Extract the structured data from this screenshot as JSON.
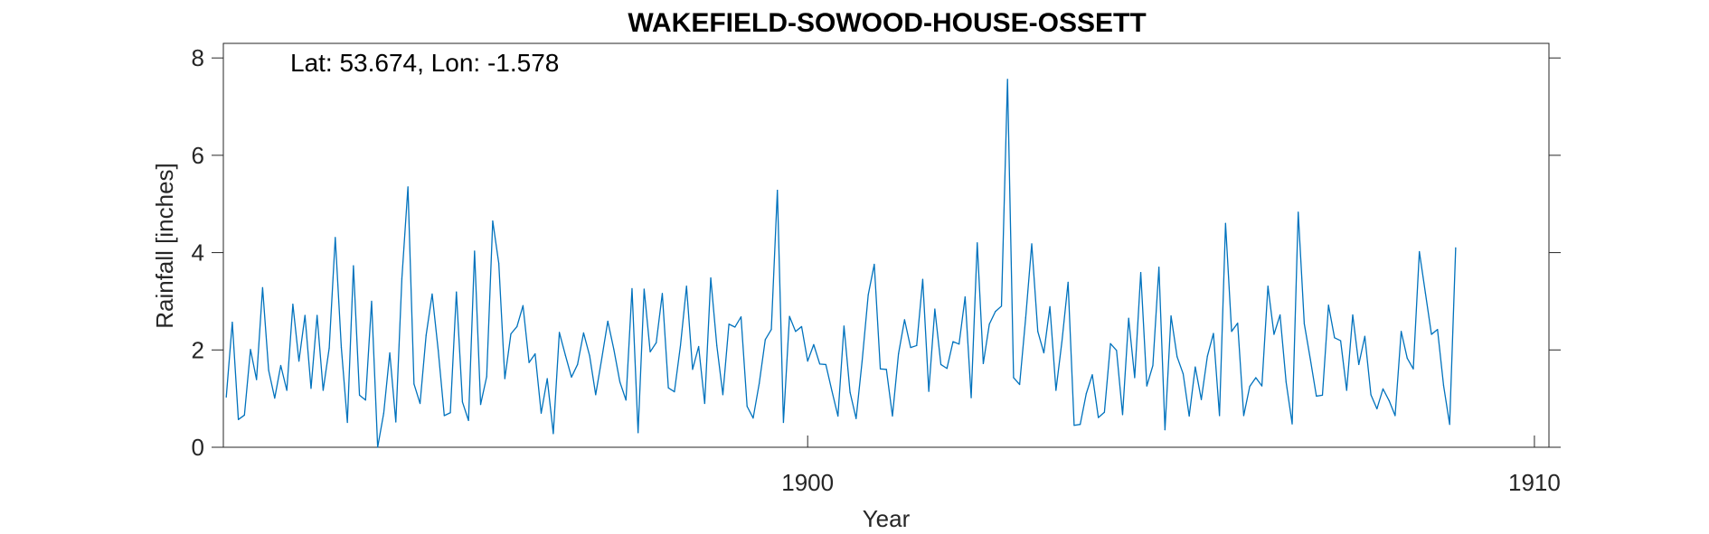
{
  "chart_data": {
    "type": "line",
    "title": "WAKEFIELD-SOWOOD-HOUSE-OSSETT",
    "xlabel": "Year",
    "ylabel": "Rainfall [inches]",
    "annotation": "Lat: 53.674, Lon: -1.578",
    "xlim": [
      1891.96,
      1910.2
    ],
    "ylim": [
      0,
      8.3
    ],
    "xticks": [
      1900,
      1910
    ],
    "xtick_labels": [
      "1900",
      "1910"
    ],
    "yticks": [
      0,
      2,
      4,
      6,
      8
    ],
    "ytick_labels": [
      "0",
      "2",
      "4",
      "6",
      "8"
    ],
    "grid": false,
    "series": [
      {
        "color": "#0072BD",
        "start_year": 1892,
        "values": [
          1.03,
          2.57,
          0.57,
          0.66,
          2.01,
          1.39,
          3.28,
          1.58,
          1.01,
          1.68,
          1.17,
          2.94,
          1.77,
          2.71,
          1.21,
          2.71,
          1.17,
          2.04,
          4.31,
          2.05,
          0.51,
          3.73,
          1.07,
          0.97,
          3.0,
          0.0,
          0.7,
          1.94,
          0.52,
          3.47,
          5.35,
          1.3,
          0.9,
          2.3,
          3.15,
          1.99,
          0.65,
          0.71,
          3.19,
          0.93,
          0.55,
          4.03,
          0.88,
          1.45,
          4.65,
          3.78,
          1.41,
          2.33,
          2.48,
          2.91,
          1.74,
          1.92,
          0.7,
          1.41,
          0.28,
          2.36,
          1.89,
          1.44,
          1.7,
          2.35,
          1.88,
          1.08,
          1.82,
          2.59,
          2.01,
          1.34,
          0.97,
          3.26,
          0.3,
          3.25,
          1.96,
          2.15,
          3.16,
          1.22,
          1.14,
          2.09,
          3.31,
          1.6,
          2.07,
          0.9,
          3.48,
          2.09,
          1.08,
          2.53,
          2.47,
          2.68,
          0.84,
          0.6,
          1.31,
          2.21,
          2.42,
          5.28,
          0.51,
          2.69,
          2.38,
          2.48,
          1.77,
          2.11,
          1.71,
          1.7,
          1.16,
          0.64,
          2.49,
          1.13,
          0.59,
          1.78,
          3.13,
          3.76,
          1.61,
          1.6,
          0.64,
          1.92,
          2.62,
          2.05,
          2.09,
          3.45,
          1.15,
          2.84,
          1.7,
          1.62,
          2.17,
          2.12,
          3.09,
          1.02,
          4.2,
          1.72,
          2.53,
          2.79,
          2.9,
          7.56,
          1.43,
          1.29,
          2.66,
          4.18,
          2.38,
          1.94,
          2.89,
          1.17,
          2.19,
          3.39,
          0.45,
          0.47,
          1.1,
          1.49,
          0.61,
          0.72,
          2.13,
          1.99,
          0.67,
          2.65,
          1.43,
          3.59,
          1.26,
          1.68,
          3.7,
          0.36,
          2.7,
          1.86,
          1.51,
          0.64,
          1.65,
          0.98,
          1.87,
          2.34,
          0.65,
          4.6,
          2.38,
          2.55,
          0.65,
          1.25,
          1.43,
          1.26,
          3.31,
          2.32,
          2.72,
          1.34,
          0.48,
          4.83,
          2.54,
          1.81,
          1.05,
          1.07,
          2.92,
          2.25,
          2.19,
          1.17,
          2.72,
          1.7,
          2.28,
          1.08,
          0.79,
          1.2,
          0.96,
          0.65,
          2.38,
          1.83,
          1.61,
          4.02,
          3.17,
          2.32,
          2.42,
          1.27,
          0.47,
          4.1
        ]
      }
    ]
  }
}
